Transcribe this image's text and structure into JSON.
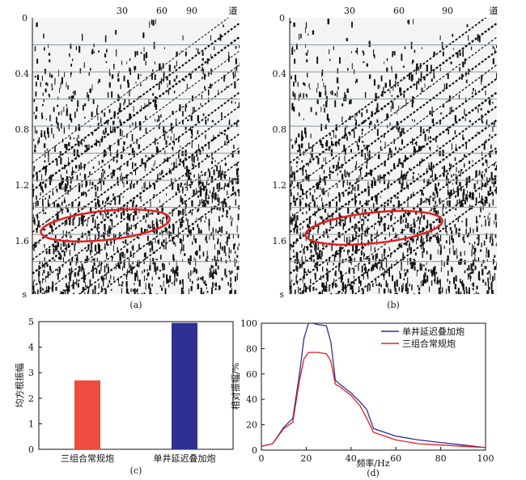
{
  "panel_a": {
    "caption": "(a)",
    "trace_ticks": [
      "30",
      "60",
      "90"
    ],
    "trace_unit": "道",
    "time_ticks": [
      "0",
      "0.4",
      "0.8",
      "1.2",
      "1.6"
    ],
    "time_unit": "s",
    "ellipse_color": "#e02020"
  },
  "panel_b": {
    "caption": "(b)",
    "trace_ticks": [
      "30",
      "60",
      "90"
    ],
    "trace_unit": "道",
    "time_ticks": [
      "0",
      "0.4",
      "0.8",
      "1.2",
      "1.6"
    ],
    "time_unit": "s",
    "ellipse_color": "#e02020"
  },
  "panel_c": {
    "caption": "(c)",
    "ylabel": "均方根振幅",
    "y_ticks": [
      "0",
      "1",
      "2",
      "3",
      "4",
      "5"
    ]
  },
  "panel_d": {
    "caption": "(d)",
    "xlabel": "频率/Hz",
    "ylabel": "相对振幅/%",
    "x_ticks": [
      "0",
      "20",
      "40",
      "60",
      "80",
      "100"
    ],
    "y_ticks": [
      "0",
      "20",
      "40",
      "60",
      "80",
      "100"
    ]
  },
  "chart_data": [
    {
      "type": "bar",
      "title": "(c)",
      "categories": [
        "三组合常规炮",
        "单井延迟叠加炮"
      ],
      "values": [
        2.7,
        4.95
      ],
      "colors": [
        "#ef4b3f",
        "#2e3192"
      ],
      "xlabel": "",
      "ylabel": "均方根振幅",
      "ylim": [
        0,
        5
      ]
    },
    {
      "type": "line",
      "title": "(d)",
      "xlabel": "频率/Hz",
      "ylabel": "相对振幅/%",
      "xlim": [
        0,
        100
      ],
      "ylim": [
        0,
        100
      ],
      "legend": "top-right",
      "series": [
        {
          "name": "单井延迟叠加炮",
          "color": "#2e3192",
          "x": [
            0,
            5,
            10,
            14,
            17,
            19,
            21,
            23,
            25,
            29,
            31,
            33,
            35,
            40,
            44,
            47,
            50,
            60,
            70,
            80,
            90,
            100
          ],
          "y": [
            3,
            5,
            18,
            25,
            60,
            88,
            100,
            100,
            99,
            98,
            85,
            55,
            52,
            45,
            38,
            32,
            17,
            11,
            8,
            6,
            4,
            2
          ]
        },
        {
          "name": "三组合常规炮",
          "color": "#e02020",
          "x": [
            0,
            5,
            10,
            14,
            17,
            19,
            21,
            23,
            25,
            29,
            31,
            33,
            35,
            40,
            44,
            47,
            50,
            60,
            70,
            80,
            90,
            100
          ],
          "y": [
            3,
            5,
            17,
            22,
            55,
            72,
            77,
            77,
            77,
            76,
            70,
            52,
            50,
            43,
            35,
            25,
            14,
            8,
            5,
            4,
            3,
            2
          ]
        }
      ]
    }
  ]
}
